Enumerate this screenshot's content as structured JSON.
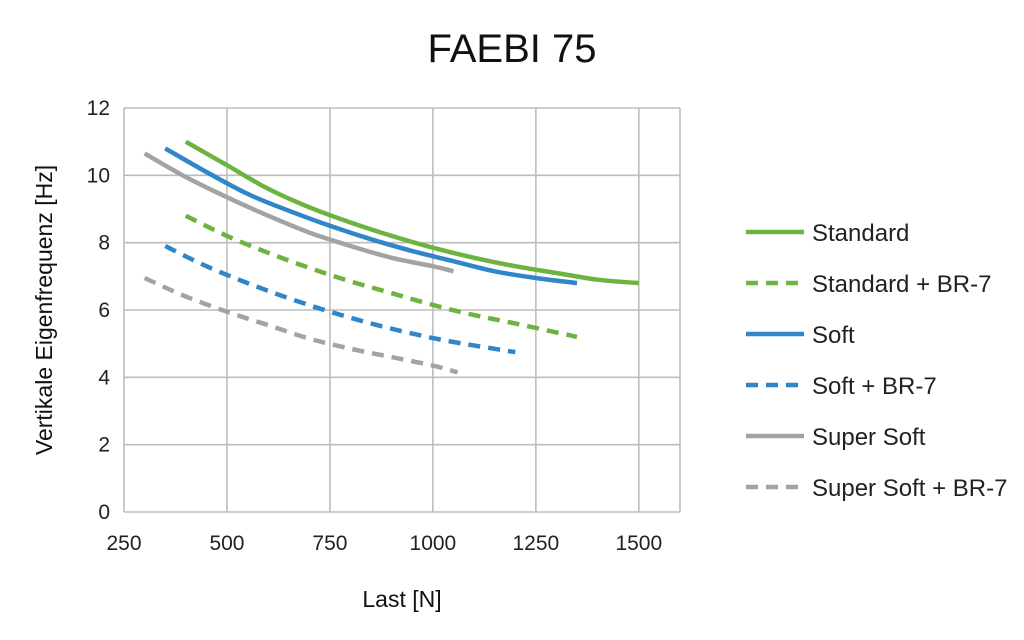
{
  "chart_data": {
    "type": "line",
    "title": "FAEBI 75",
    "xlabel": "Last [N]",
    "ylabel": "Vertikale Eigenfrequenz [Hz]",
    "xlim": [
      250,
      1600
    ],
    "ylim": [
      0,
      12
    ],
    "xticks": [
      250,
      500,
      750,
      1000,
      1250,
      1500
    ],
    "yticks": [
      0,
      2,
      4,
      6,
      8,
      10,
      12
    ],
    "grid": true,
    "legend_position": "right",
    "series": [
      {
        "name": "Standard",
        "color": "#6cb33f",
        "dash": "solid",
        "x": [
          400,
          500,
          600,
          700,
          800,
          900,
          1000,
          1100,
          1200,
          1300,
          1400,
          1500
        ],
        "y": [
          11.0,
          10.3,
          9.6,
          9.05,
          8.6,
          8.2,
          7.85,
          7.55,
          7.3,
          7.1,
          6.9,
          6.8
        ]
      },
      {
        "name": "Standard + BR-7",
        "color": "#6cb33f",
        "dash": "dashed",
        "x": [
          400,
          500,
          600,
          700,
          800,
          900,
          1000,
          1100,
          1200,
          1350
        ],
        "y": [
          8.8,
          8.2,
          7.7,
          7.25,
          6.85,
          6.5,
          6.15,
          5.85,
          5.6,
          5.2
        ]
      },
      {
        "name": "Soft",
        "color": "#2f86c8",
        "dash": "solid",
        "x": [
          350,
          450,
          550,
          650,
          750,
          850,
          950,
          1050,
          1150,
          1250,
          1350
        ],
        "y": [
          10.8,
          10.1,
          9.45,
          8.95,
          8.5,
          8.1,
          7.75,
          7.45,
          7.15,
          6.95,
          6.8
        ]
      },
      {
        "name": "Soft + BR-7",
        "color": "#2f86c8",
        "dash": "dashed",
        "x": [
          350,
          450,
          550,
          650,
          750,
          850,
          950,
          1050,
          1200
        ],
        "y": [
          7.9,
          7.3,
          6.8,
          6.35,
          5.95,
          5.6,
          5.3,
          5.05,
          4.75
        ]
      },
      {
        "name": "Super Soft",
        "color": "#a3a3a3",
        "dash": "solid",
        "x": [
          300,
          400,
          500,
          600,
          700,
          800,
          900,
          1000,
          1050
        ],
        "y": [
          10.65,
          9.95,
          9.35,
          8.8,
          8.3,
          7.9,
          7.55,
          7.3,
          7.15
        ]
      },
      {
        "name": "Super Soft + BR-7",
        "color": "#a3a3a3",
        "dash": "dashed",
        "x": [
          300,
          400,
          500,
          600,
          700,
          800,
          900,
          1000,
          1060
        ],
        "y": [
          6.95,
          6.4,
          5.95,
          5.55,
          5.15,
          4.85,
          4.6,
          4.35,
          4.15
        ]
      }
    ]
  }
}
